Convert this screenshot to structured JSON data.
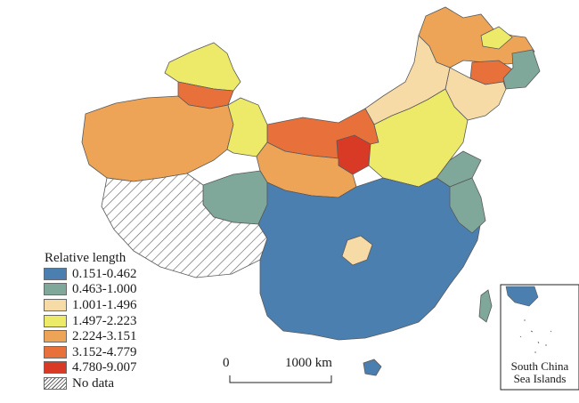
{
  "legend": {
    "title": "Relative length",
    "items": [
      {
        "label": "0.151-0.462",
        "color": "#4a7fb0"
      },
      {
        "label": "0.463-1.000",
        "color": "#7fa89a"
      },
      {
        "label": "1.001-1.496",
        "color": "#f7dba6"
      },
      {
        "label": "1.497-2.223",
        "color": "#edea6a"
      },
      {
        "label": "2.224-3.151",
        "color": "#eda457"
      },
      {
        "label": "3.152-4.779",
        "color": "#e7703b"
      },
      {
        "label": "4.780-9.007",
        "color": "#d93a26"
      },
      {
        "label": "No data",
        "color": "hatched"
      }
    ]
  },
  "scale_bar": {
    "zero": "0",
    "distance": "1000 km"
  },
  "inset": {
    "line1": "South China",
    "line2": "Sea Islands"
  },
  "border_color": "#5a5a5a"
}
